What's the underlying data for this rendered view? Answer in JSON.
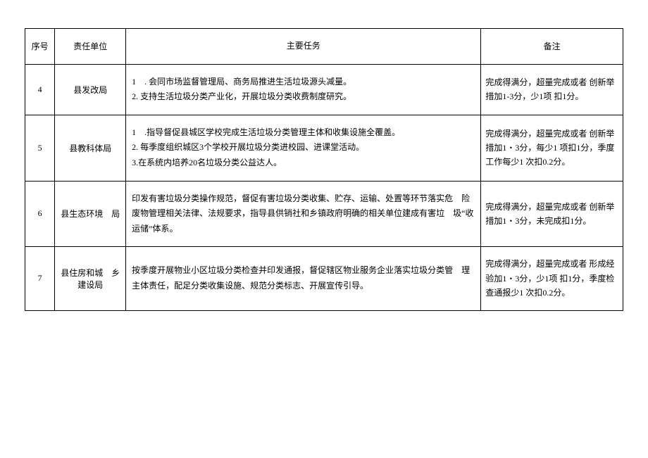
{
  "table": {
    "headers": {
      "seq": "序号",
      "unit": "责任单位",
      "task": "主要任务",
      "remark": "备注"
    },
    "rows": [
      {
        "seq": "4",
        "unit": "县发改局",
        "task_l1": "1　. 会同市场监督管理局、商务局推进生活垃圾源头减量。",
        "task_l2": "2. 支持生活垃圾分类产业化，开展垃圾分类收费制度研究。",
        "task_l3": "",
        "remark": "完成得满分，超量完成或者 创新举措加1-3分，少1项 扣1分。"
      },
      {
        "seq": "5",
        "unit": "县教科体局",
        "task_l1": "1　.指导督促县城区学校完成生活垃圾分类管理主体和收集设施全覆盖。",
        "task_l2": "2. 每季度组织城区3个学校开展垃圾分类进校园、进课堂活动。",
        "task_l3": "3.在系统内培养20名垃圾分类公益达人。",
        "remark": "完成得满分，超量完成或者 创新举措加1・3分，每少1 项扣1分，季度工作每少1 次扣0.2分。"
      },
      {
        "seq": "6",
        "unit": "县生态环境　局",
        "task_l1": "印发有害垃圾分类操作规范，督促有害垃圾分类收集、贮存、运输、处置等环节落实危　险废物管理相关法律、法规要求，指导县供销社和乡镇政府明确的相关单位建成有害垃　圾“收运储”体系。",
        "task_l2": "",
        "task_l3": "",
        "remark": "完成得满分，超量完成或者 创新举措加1・3分，未完成扣1分。"
      },
      {
        "seq": "7",
        "unit": "县住房和城　乡建设局",
        "task_l1": "按季度开展物业小区垃圾分类检查并印发通报，督促辖区物业服务企业落实垃圾分类管　理主体责任，配足分类收集设施、规范分类标志、开展宣传引导。",
        "task_l2": "",
        "task_l3": "",
        "remark": "完成得满分，超量完成或者 形成经验加1・3分，少1项 扣1分，季度检查通报少1 次扣0.2分。"
      }
    ]
  }
}
